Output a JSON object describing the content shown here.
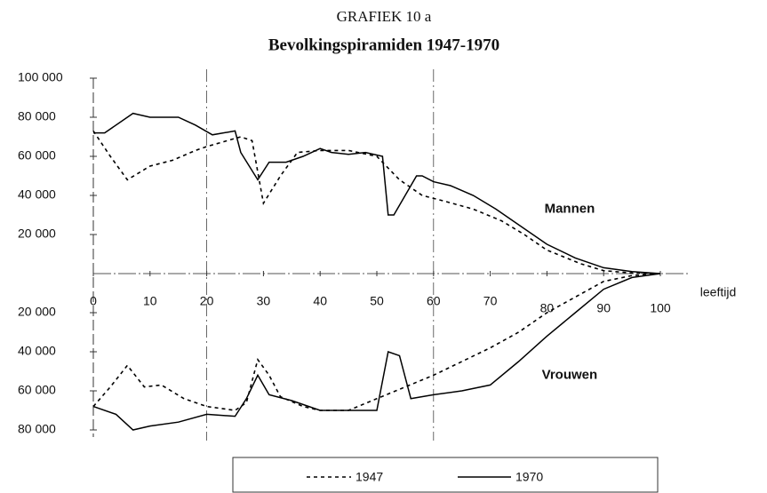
{
  "chart_data": {
    "type": "line",
    "supertitle": "GRAFIEK 10 a",
    "title": "Bevolkingspiramiden 1947-1970",
    "xlabel": "leeftijd",
    "xlim": [
      0,
      100
    ],
    "xticks": [
      0,
      10,
      20,
      30,
      40,
      50,
      60,
      70,
      80,
      90,
      100
    ],
    "xgrid": [
      20,
      60
    ],
    "ylim": [
      -80000,
      100000
    ],
    "yticks": [
      {
        "value": 100000,
        "label": "100 000"
      },
      {
        "value": 80000,
        "label": "80 000"
      },
      {
        "value": 60000,
        "label": "60 000"
      },
      {
        "value": 40000,
        "label": "40 000"
      },
      {
        "value": 20000,
        "label": "20 000"
      },
      {
        "value": -20000,
        "label": "20 000"
      },
      {
        "value": -40000,
        "label": "40 000"
      },
      {
        "value": -60000,
        "label": "60 000"
      },
      {
        "value": -80000,
        "label": "80 000"
      }
    ],
    "annotations": [
      {
        "text": "Mannen",
        "x": 84,
        "y": 33000
      },
      {
        "text": "Vrouwen",
        "x": 84,
        "y": -52000
      }
    ],
    "series": [
      {
        "name": "1947",
        "color": "#000000",
        "dashed": true,
        "men": {
          "x": [
            0,
            3,
            6,
            10,
            14,
            18,
            20,
            26,
            28,
            30,
            33,
            36,
            40,
            45,
            50,
            54,
            58,
            62,
            67,
            72,
            76,
            80,
            86,
            90,
            95,
            100
          ],
          "values": [
            73000,
            60000,
            48000,
            55000,
            58000,
            63000,
            65000,
            70000,
            68000,
            36000,
            50000,
            62000,
            63000,
            63000,
            60000,
            48000,
            40000,
            37000,
            33000,
            27000,
            20000,
            12000,
            5000,
            1500,
            300,
            0
          ]
        },
        "women": {
          "x": [
            0,
            3,
            6,
            9,
            12,
            16,
            20,
            25,
            27,
            29,
            31,
            33,
            37,
            40,
            45,
            50,
            55,
            60,
            65,
            70,
            75,
            80,
            85,
            90,
            95,
            100
          ],
          "values": [
            -68000,
            -58000,
            -47000,
            -58000,
            -57000,
            -64000,
            -68000,
            -70000,
            -66000,
            -44000,
            -52000,
            -63000,
            -68000,
            -70000,
            -70000,
            -64000,
            -58000,
            -52000,
            -45000,
            -38000,
            -30000,
            -20000,
            -12000,
            -4000,
            -1000,
            0
          ]
        }
      },
      {
        "name": "1970",
        "color": "#000000",
        "dashed": false,
        "men": {
          "x": [
            0,
            2,
            7,
            10,
            15,
            18,
            21,
            25,
            26,
            29,
            31,
            34,
            37,
            40,
            42,
            45,
            48,
            51,
            52,
            53,
            55,
            57,
            58,
            60,
            63,
            67,
            71,
            75,
            80,
            85,
            90,
            95,
            100
          ],
          "values": [
            72000,
            72000,
            82000,
            80000,
            80000,
            76000,
            71000,
            73000,
            62000,
            48000,
            57000,
            57000,
            60000,
            64000,
            62000,
            61000,
            62000,
            60000,
            30000,
            30000,
            40000,
            50000,
            50000,
            47000,
            45000,
            40000,
            33000,
            25000,
            15000,
            8000,
            3000,
            1000,
            0
          ]
        },
        "women": {
          "x": [
            0,
            4,
            7,
            10,
            15,
            20,
            25,
            27,
            29,
            31,
            35,
            40,
            45,
            50,
            52,
            54,
            56,
            60,
            65,
            70,
            75,
            80,
            85,
            90,
            95,
            100
          ],
          "values": [
            -68000,
            -72000,
            -80000,
            -78000,
            -76000,
            -72000,
            -73000,
            -64000,
            -52000,
            -62000,
            -65000,
            -70000,
            -70000,
            -70000,
            -40000,
            -42000,
            -64000,
            -62000,
            -60000,
            -57000,
            -45000,
            -32000,
            -20000,
            -8000,
            -2000,
            0
          ]
        }
      }
    ]
  }
}
